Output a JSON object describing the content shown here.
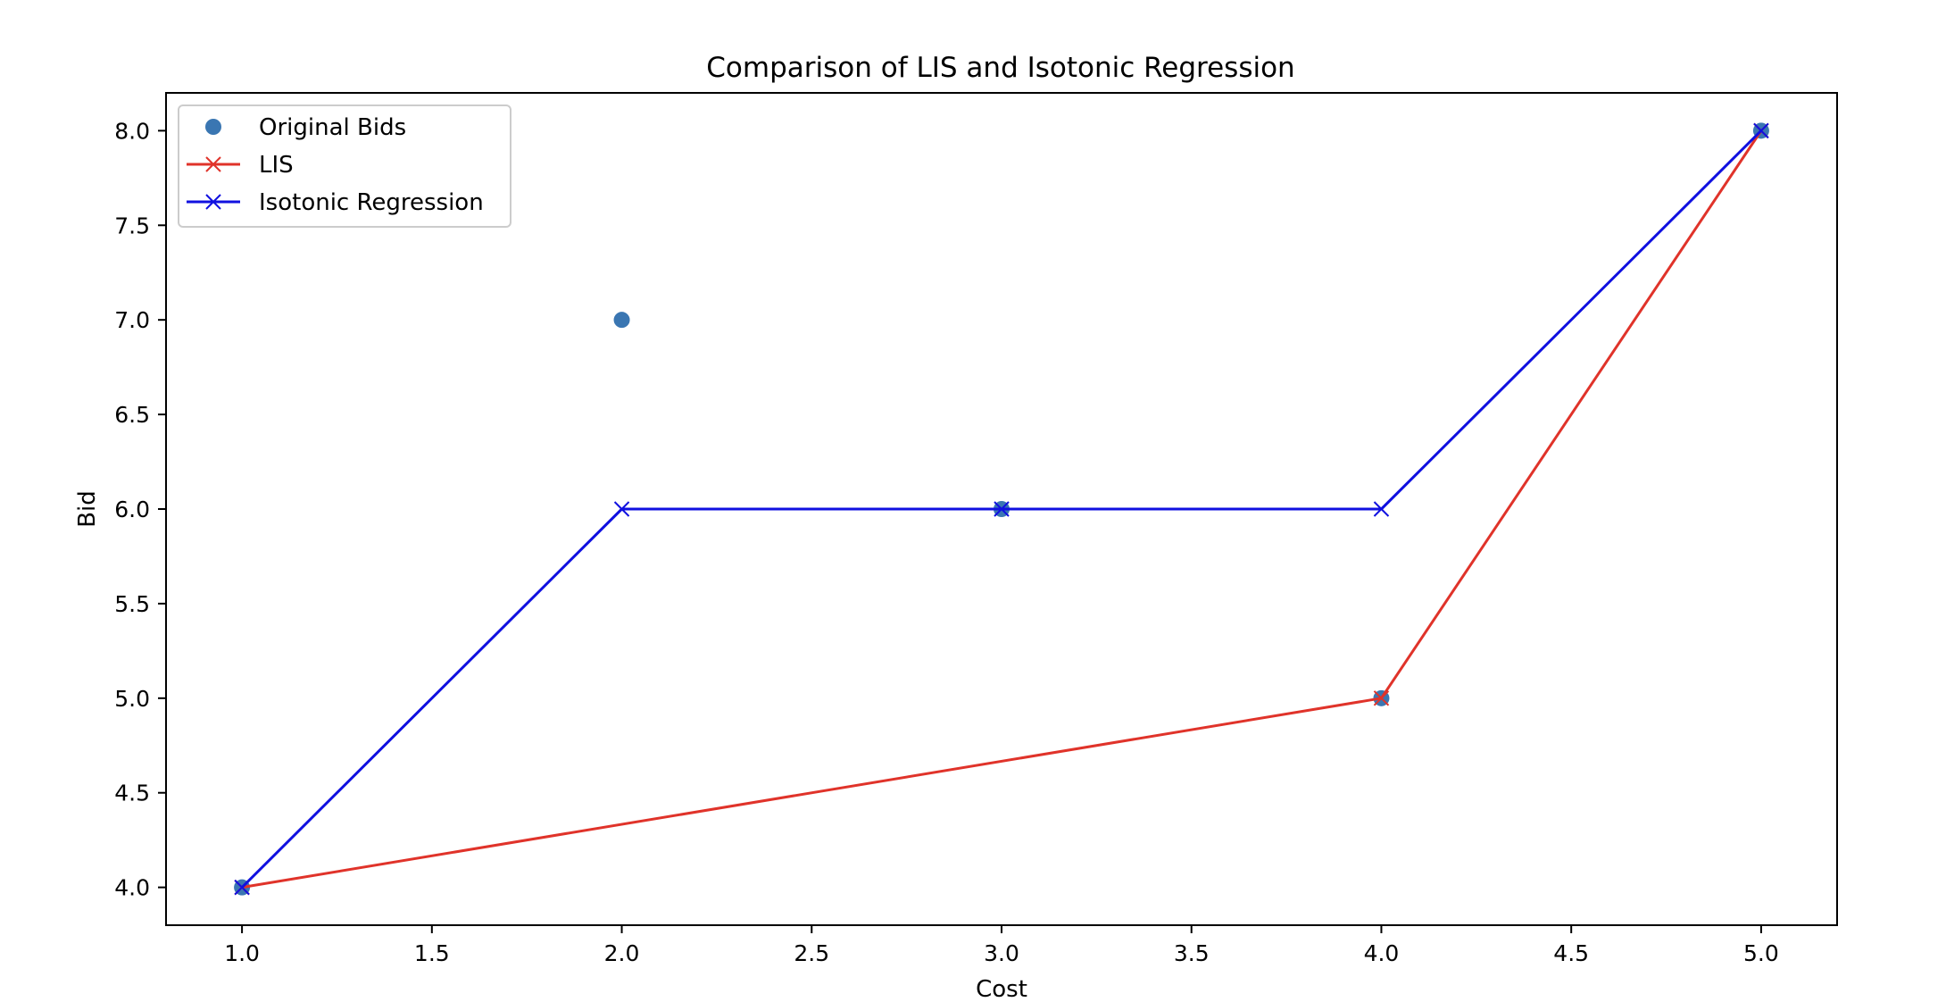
{
  "chart_data": {
    "type": "line",
    "title": "Comparison of LIS and Isotonic Regression",
    "xlabel": "Cost",
    "ylabel": "Bid",
    "xlim": [
      0.8,
      5.2
    ],
    "ylim": [
      3.8,
      8.2
    ],
    "x_ticks": [
      1.0,
      1.5,
      2.0,
      2.5,
      3.0,
      3.5,
      4.0,
      4.5,
      5.0
    ],
    "x_tick_labels": [
      "1.0",
      "1.5",
      "2.0",
      "2.5",
      "3.0",
      "3.5",
      "4.0",
      "4.5",
      "5.0"
    ],
    "y_ticks": [
      4.0,
      4.5,
      5.0,
      5.5,
      6.0,
      6.5,
      7.0,
      7.5,
      8.0
    ],
    "y_tick_labels": [
      "4.0",
      "4.5",
      "5.0",
      "5.5",
      "6.0",
      "6.5",
      "7.0",
      "7.5",
      "8.0"
    ],
    "grid": false,
    "legend_position": "upper-left",
    "series": [
      {
        "name": "Original Bids",
        "kind": "scatter",
        "marker": "circle",
        "color": "#3a76b2",
        "x": [
          1,
          2,
          3,
          4,
          5
        ],
        "y": [
          4,
          7,
          6,
          5,
          8
        ]
      },
      {
        "name": "LIS",
        "kind": "line",
        "marker": "x",
        "color": "#e0332a",
        "x": [
          1,
          4,
          5
        ],
        "y": [
          4,
          5,
          8
        ]
      },
      {
        "name": "Isotonic Regression",
        "kind": "line",
        "marker": "x",
        "color": "#1010e0",
        "x": [
          1,
          2,
          3,
          4,
          5
        ],
        "y": [
          4,
          6,
          6,
          6,
          8
        ]
      }
    ]
  }
}
